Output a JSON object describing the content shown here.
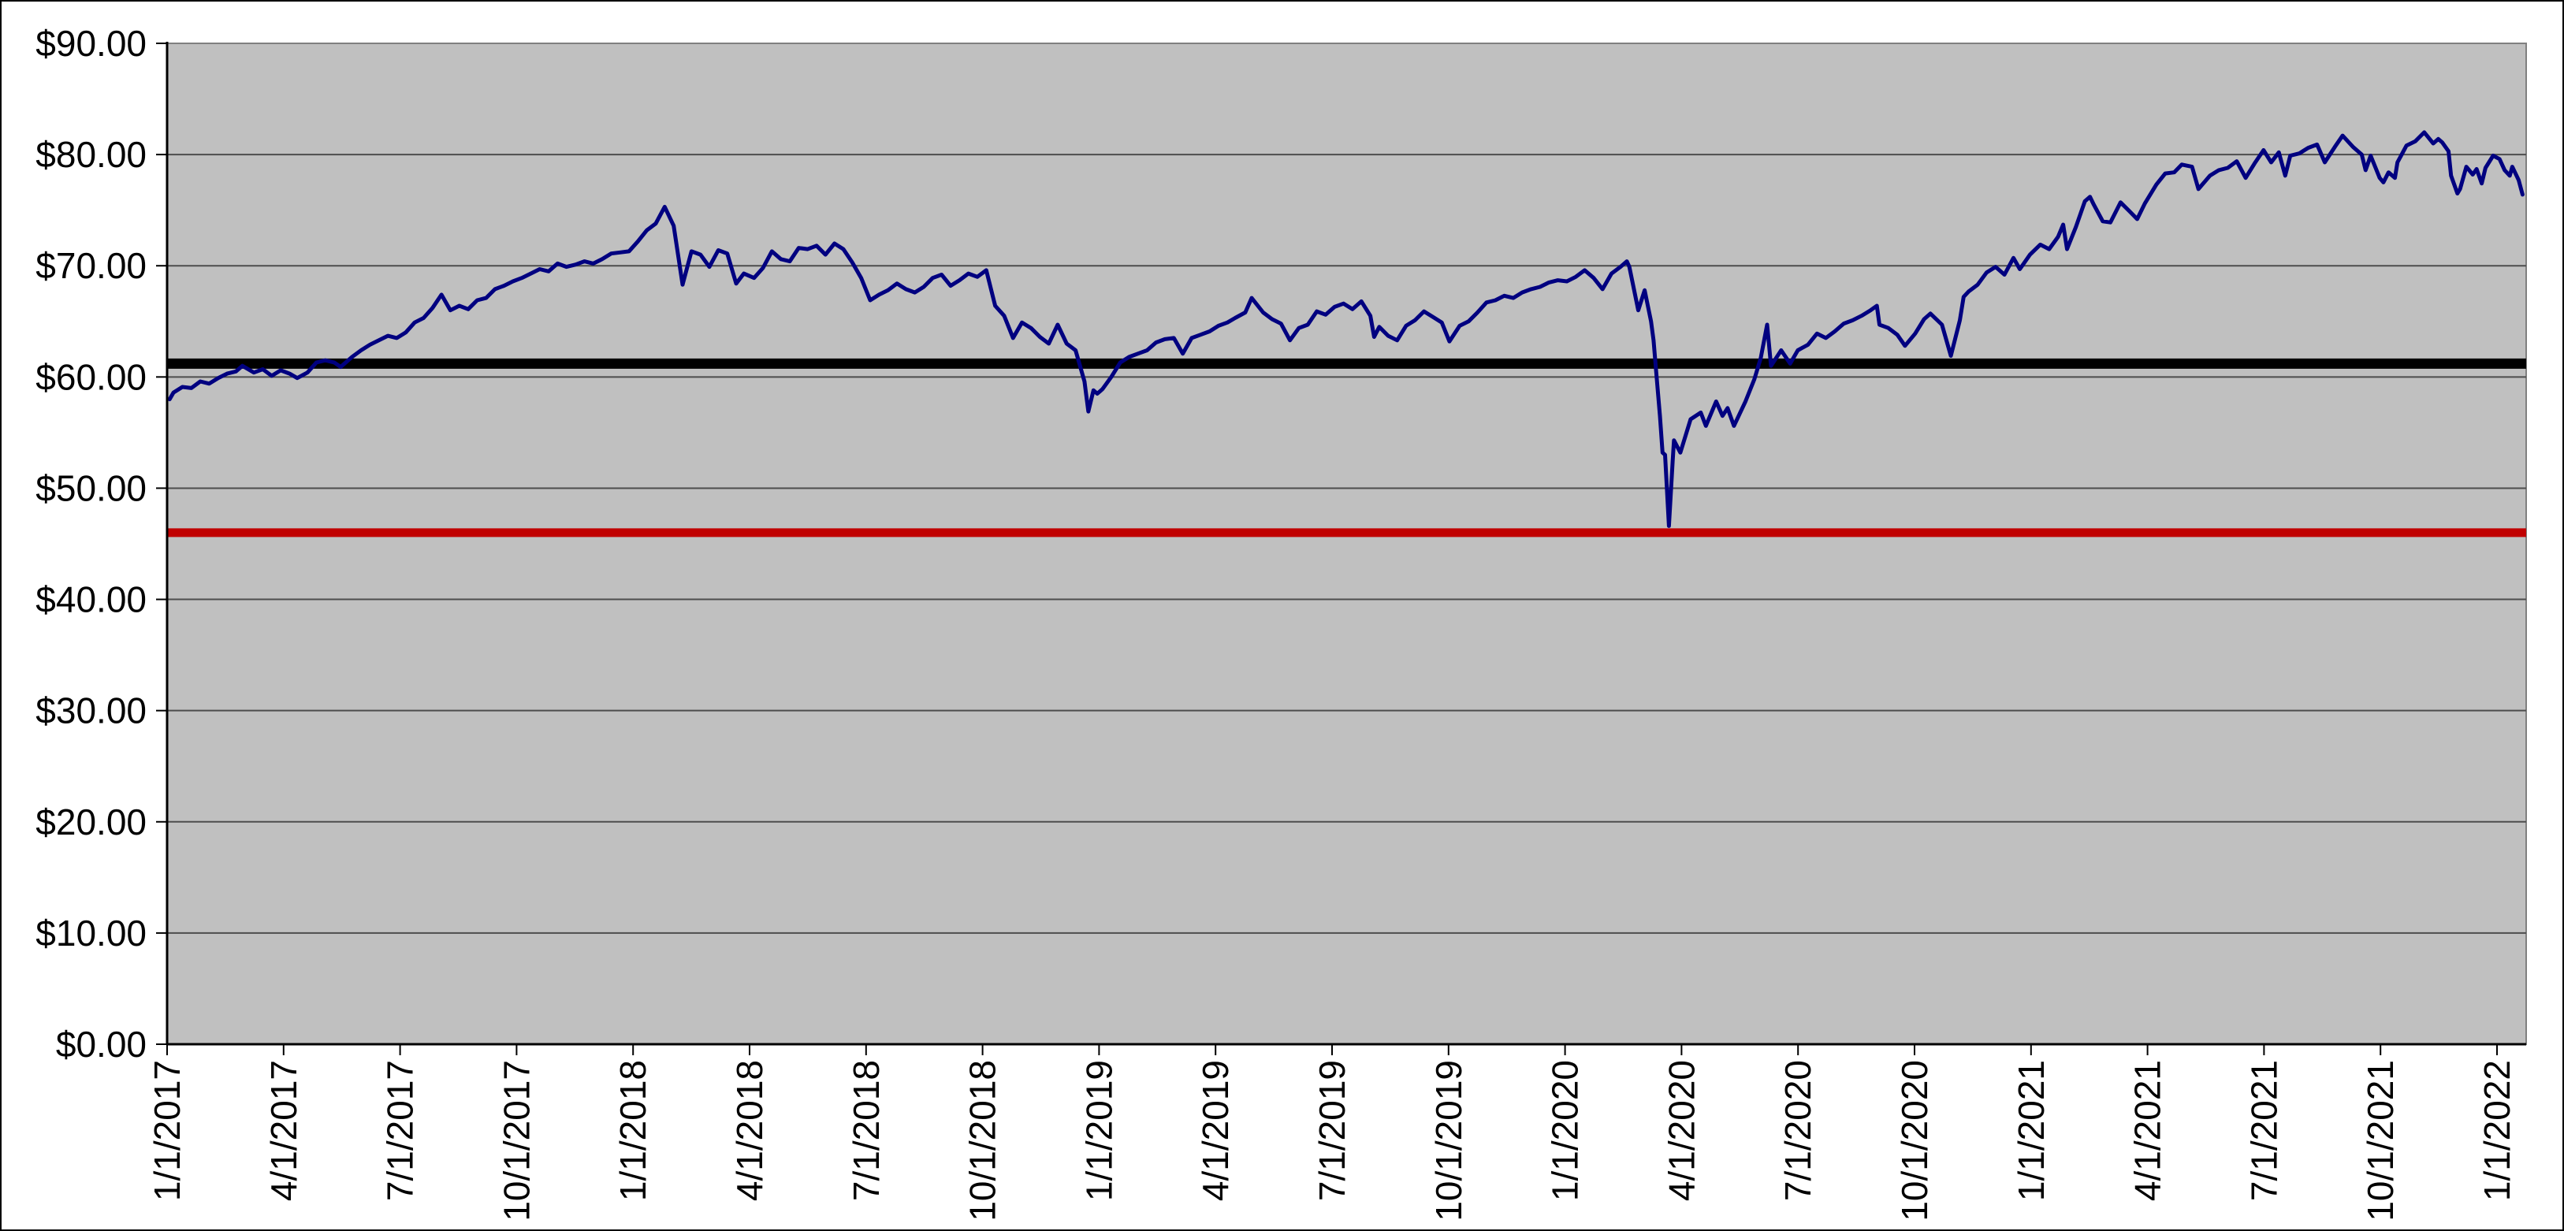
{
  "page": {
    "background_color": "#FFFFFF",
    "outer_border_color": "#000000"
  },
  "chart_data": {
    "type": "line",
    "title": "",
    "plot": {
      "background_color": "#C0C0C0",
      "grid": "horizontal",
      "gridline_color": "#4D4D4D",
      "plot_border_color": "#808080",
      "axis_color": "#000000"
    },
    "y_axis": {
      "min": 0,
      "max": 90,
      "tick_step": 10,
      "tick_values": [
        0,
        10,
        20,
        30,
        40,
        50,
        60,
        70,
        80,
        90
      ],
      "tick_labels": [
        "$0.00",
        "$10.00",
        "$20.00",
        "$30.00",
        "$40.00",
        "$50.00",
        "$60.00",
        "$70.00",
        "$80.00",
        "$90.00"
      ]
    },
    "x_axis": {
      "tick_labels": [
        "1/1/2017",
        "4/1/2017",
        "7/1/2017",
        "10/1/2017",
        "1/1/2018",
        "4/1/2018",
        "7/1/2018",
        "10/1/2018",
        "1/1/2019",
        "4/1/2019",
        "7/1/2019",
        "10/1/2019",
        "1/1/2020",
        "4/1/2020",
        "7/1/2020",
        "10/1/2020",
        "1/1/2021",
        "4/1/2021",
        "7/1/2021",
        "10/1/2021",
        "1/1/2022"
      ],
      "label_rotation": -90,
      "start_date": "1/1/2017",
      "right_edge_date": "1/24/2022"
    },
    "reference_lines": [
      {
        "name": "black-reference-line",
        "value": 61.2,
        "color": "#000000",
        "thickness": 13
      },
      {
        "name": "red-reference-line",
        "value": 46.0,
        "color": "#C00000",
        "thickness": 11
      }
    ],
    "series": [
      {
        "name": "price-series",
        "color": "#000080",
        "stroke_width": 5,
        "dates": [
          "1/3/2017",
          "1/6/2017",
          "1/13/2017",
          "1/20/2017",
          "1/27/2017",
          "2/3/2017",
          "2/10/2017",
          "2/17/2017",
          "2/24/2017",
          "3/1/2017",
          "3/10/2017",
          "3/17/2017",
          "3/24/2017",
          "3/31/2017",
          "4/7/2017",
          "4/13/2017",
          "4/21/2017",
          "4/28/2017",
          "5/5/2017",
          "5/12/2017",
          "5/17/2017",
          "5/26/2017",
          "6/2/2017",
          "6/9/2017",
          "6/16/2017",
          "6/23/2017",
          "6/30/2017",
          "7/7/2017",
          "7/14/2017",
          "7/21/2017",
          "7/28/2017",
          "8/4/2017",
          "8/11/2017",
          "8/18/2017",
          "8/25/2017",
          "9/1/2017",
          "9/8/2017",
          "9/15/2017",
          "9/22/2017",
          "9/29/2017",
          "10/6/2017",
          "10/13/2017",
          "10/20/2017",
          "10/27/2017",
          "11/3/2017",
          "11/10/2017",
          "11/17/2017",
          "11/24/2017",
          "12/1/2017",
          "12/8/2017",
          "12/15/2017",
          "12/22/2017",
          "12/29/2017",
          "1/5/2018",
          "1/12/2018",
          "1/19/2018",
          "1/26/2018",
          "2/2/2018",
          "2/9/2018",
          "2/16/2018",
          "2/23/2018",
          "3/2/2018",
          "3/9/2018",
          "3/16/2018",
          "3/23/2018",
          "3/29/2018",
          "4/6/2018",
          "4/13/2018",
          "4/20/2018",
          "4/27/2018",
          "5/4/2018",
          "5/11/2018",
          "5/18/2018",
          "5/25/2018",
          "6/1/2018",
          "6/8/2018",
          "6/15/2018",
          "6/22/2018",
          "6/29/2018",
          "7/6/2018",
          "7/13/2018",
          "7/20/2018",
          "7/27/2018",
          "8/3/2018",
          "8/10/2018",
          "8/17/2018",
          "8/24/2018",
          "8/31/2018",
          "9/7/2018",
          "9/14/2018",
          "9/21/2018",
          "9/28/2018",
          "10/5/2018",
          "10/12/2018",
          "10/19/2018",
          "10/26/2018",
          "11/2/2018",
          "11/9/2018",
          "11/16/2018",
          "11/23/2018",
          "11/30/2018",
          "12/7/2018",
          "12/14/2018",
          "12/21/2018",
          "12/24/2018",
          "12/28/2018",
          "12/31/2018",
          "1/4/2019",
          "1/11/2019",
          "1/18/2019",
          "1/25/2019",
          "2/1/2019",
          "2/8/2019",
          "2/15/2019",
          "2/22/2019",
          "3/1/2019",
          "3/8/2019",
          "3/15/2019",
          "3/22/2019",
          "3/29/2019",
          "4/5/2019",
          "4/12/2019",
          "4/18/2019",
          "4/26/2019",
          "5/1/2019",
          "5/10/2019",
          "5/17/2019",
          "5/24/2019",
          "5/31/2019",
          "6/7/2019",
          "6/14/2019",
          "6/21/2019",
          "6/28/2019",
          "7/5/2019",
          "7/12/2019",
          "7/19/2019",
          "7/26/2019",
          "8/2/2019",
          "8/5/2019",
          "8/9/2019",
          "8/16/2019",
          "8/23/2019",
          "8/30/2019",
          "9/6/2019",
          "9/13/2019",
          "9/20/2019",
          "9/27/2019",
          "10/3/2019",
          "10/11/2019",
          "10/18/2019",
          "10/25/2019",
          "11/1/2019",
          "11/8/2019",
          "11/15/2019",
          "11/22/2019",
          "11/29/2019",
          "12/6/2019",
          "12/13/2019",
          "12/20/2019",
          "12/27/2019",
          "1/3/2020",
          "1/10/2020",
          "1/17/2020",
          "1/24/2020",
          "1/31/2020",
          "2/7/2020",
          "2/14/2020",
          "2/19/2020",
          "2/21/2020",
          "2/28/2020",
          "3/4/2020",
          "3/9/2020",
          "3/11/2020",
          "3/13/2020",
          "3/16/2020",
          "3/18/2020",
          "3/20/2020",
          "3/23/2020",
          "3/26/2020",
          "3/27/2020",
          "4/1/2020",
          "4/9/2020",
          "4/17/2020",
          "4/21/2020",
          "4/29/2020",
          "5/4/2020",
          "5/8/2020",
          "5/13/2020",
          "5/22/2020",
          "5/29/2020",
          "6/3/2020",
          "6/8/2020",
          "6/11/2020",
          "6/19/2020",
          "6/26/2020",
          "7/2/2020",
          "7/10/2020",
          "7/17/2020",
          "7/24/2020",
          "7/31/2020",
          "8/7/2020",
          "8/14/2020",
          "8/21/2020",
          "8/28/2020",
          "9/2/2020",
          "9/4/2020",
          "9/11/2020",
          "9/18/2020",
          "9/24/2020",
          "10/2/2020",
          "10/9/2020",
          "10/14/2020",
          "10/23/2020",
          "10/30/2020",
          "11/6/2020",
          "11/9/2020",
          "11/13/2020",
          "11/20/2020",
          "11/27/2020",
          "12/4/2020",
          "12/11/2020",
          "12/18/2020",
          "12/23/2020",
          "12/31/2020",
          "1/8/2021",
          "1/15/2021",
          "1/22/2021",
          "1/26/2021",
          "1/29/2021",
          "2/5/2021",
          "2/12/2021",
          "2/16/2021",
          "2/19/2021",
          "2/26/2021",
          "3/4/2021",
          "3/12/2021",
          "3/19/2021",
          "3/25/2021",
          "3/31/2021",
          "4/9/2021",
          "4/16/2021",
          "4/23/2021",
          "4/29/2021",
          "5/7/2021",
          "5/12/2021",
          "5/21/2021",
          "5/28/2021",
          "6/4/2021",
          "6/11/2021",
          "6/18/2021",
          "6/25/2021",
          "7/2/2021",
          "7/8/2021",
          "7/14/2021",
          "7/19/2021",
          "7/23/2021",
          "7/30/2021",
          "8/6/2021",
          "8/13/2021",
          "8/19/2021",
          "8/27/2021",
          "9/2/2021",
          "9/10/2021",
          "9/17/2021",
          "9/20/2021",
          "9/24/2021",
          "10/1/2021",
          "10/4/2021",
          "10/8/2021",
          "10/13/2021",
          "10/15/2021",
          "10/22/2021",
          "10/29/2021",
          "11/5/2021",
          "11/12/2021",
          "11/16/2021",
          "11/19/2021",
          "11/24/2021",
          "11/26/2021",
          "12/1/2021",
          "12/3/2021",
          "12/8/2021",
          "12/13/2021",
          "12/16/2021",
          "12/20/2021",
          "12/23/2021",
          "12/29/2021",
          "1/3/2022",
          "1/7/2022",
          "1/11/2022",
          "1/13/2022",
          "1/18/2022",
          "1/21/2022"
        ],
        "values": [
          58.0,
          58.6,
          59.1,
          59.0,
          59.6,
          59.4,
          59.9,
          60.3,
          60.5,
          61.0,
          60.4,
          60.7,
          60.1,
          60.6,
          60.3,
          59.9,
          60.4,
          61.3,
          61.5,
          61.3,
          60.9,
          61.8,
          62.4,
          62.9,
          63.3,
          63.7,
          63.5,
          64.0,
          64.9,
          65.3,
          66.2,
          67.4,
          66.0,
          66.4,
          66.1,
          66.9,
          67.1,
          67.9,
          68.2,
          68.6,
          68.9,
          69.3,
          69.7,
          69.5,
          70.2,
          69.9,
          70.1,
          70.4,
          70.2,
          70.6,
          71.1,
          71.2,
          71.3,
          72.2,
          73.2,
          73.8,
          75.3,
          73.6,
          68.3,
          71.3,
          71.0,
          69.9,
          71.4,
          71.1,
          68.4,
          69.3,
          68.9,
          69.8,
          71.3,
          70.6,
          70.4,
          71.6,
          71.5,
          71.8,
          71.0,
          72.0,
          71.5,
          70.3,
          68.9,
          66.9,
          67.4,
          67.8,
          68.4,
          67.9,
          67.6,
          68.1,
          68.9,
          69.2,
          68.2,
          68.7,
          69.3,
          69.0,
          69.6,
          66.4,
          65.5,
          63.5,
          64.9,
          64.4,
          63.6,
          63.0,
          64.7,
          63.0,
          62.4,
          59.6,
          56.9,
          58.8,
          58.5,
          58.9,
          60.0,
          61.3,
          61.8,
          62.1,
          62.4,
          63.1,
          63.4,
          63.5,
          62.1,
          63.5,
          63.8,
          64.1,
          64.6,
          64.9,
          65.3,
          65.8,
          67.1,
          65.8,
          65.2,
          64.8,
          63.3,
          64.4,
          64.7,
          65.9,
          65.6,
          66.3,
          66.6,
          66.1,
          66.8,
          65.5,
          63.6,
          64.5,
          63.7,
          63.3,
          64.6,
          65.1,
          65.9,
          65.4,
          64.9,
          63.2,
          64.6,
          65.0,
          65.8,
          66.7,
          66.9,
          67.3,
          67.1,
          67.6,
          67.9,
          68.1,
          68.5,
          68.7,
          68.6,
          69.0,
          69.6,
          68.9,
          67.9,
          69.3,
          69.9,
          70.4,
          69.9,
          66.0,
          67.8,
          65.0,
          63.3,
          60.5,
          56.5,
          53.2,
          53.0,
          46.6,
          52.5,
          54.3,
          53.2,
          56.2,
          56.8,
          55.6,
          57.8,
          56.5,
          57.2,
          55.6,
          57.8,
          59.8,
          61.7,
          64.7,
          61.0,
          62.4,
          61.2,
          62.4,
          62.9,
          63.9,
          63.5,
          64.1,
          64.8,
          65.1,
          65.5,
          66.0,
          66.4,
          64.7,
          64.4,
          63.8,
          62.8,
          63.9,
          65.2,
          65.7,
          64.7,
          61.9,
          65.1,
          67.2,
          67.7,
          68.3,
          69.4,
          69.9,
          69.2,
          70.7,
          69.7,
          71.0,
          71.9,
          71.5,
          72.6,
          73.7,
          71.5,
          73.5,
          75.8,
          76.2,
          75.5,
          74.0,
          73.9,
          75.7,
          74.9,
          74.2,
          75.6,
          77.3,
          78.3,
          78.4,
          79.1,
          78.9,
          76.9,
          78.1,
          78.6,
          78.8,
          79.4,
          77.9,
          79.2,
          80.4,
          79.3,
          80.2,
          78.1,
          79.9,
          80.1,
          80.6,
          80.9,
          79.3,
          80.7,
          81.7,
          80.7,
          80.0,
          78.6,
          79.9,
          77.9,
          77.5,
          78.4,
          77.9,
          79.3,
          80.8,
          81.2,
          82.0,
          81.0,
          81.4,
          81.1,
          80.3,
          78.1,
          76.5,
          76.9,
          78.9,
          78.2,
          78.7,
          77.4,
          78.8,
          79.9,
          79.6,
          78.6,
          78.1,
          78.9,
          77.7,
          76.4
        ]
      }
    ]
  }
}
